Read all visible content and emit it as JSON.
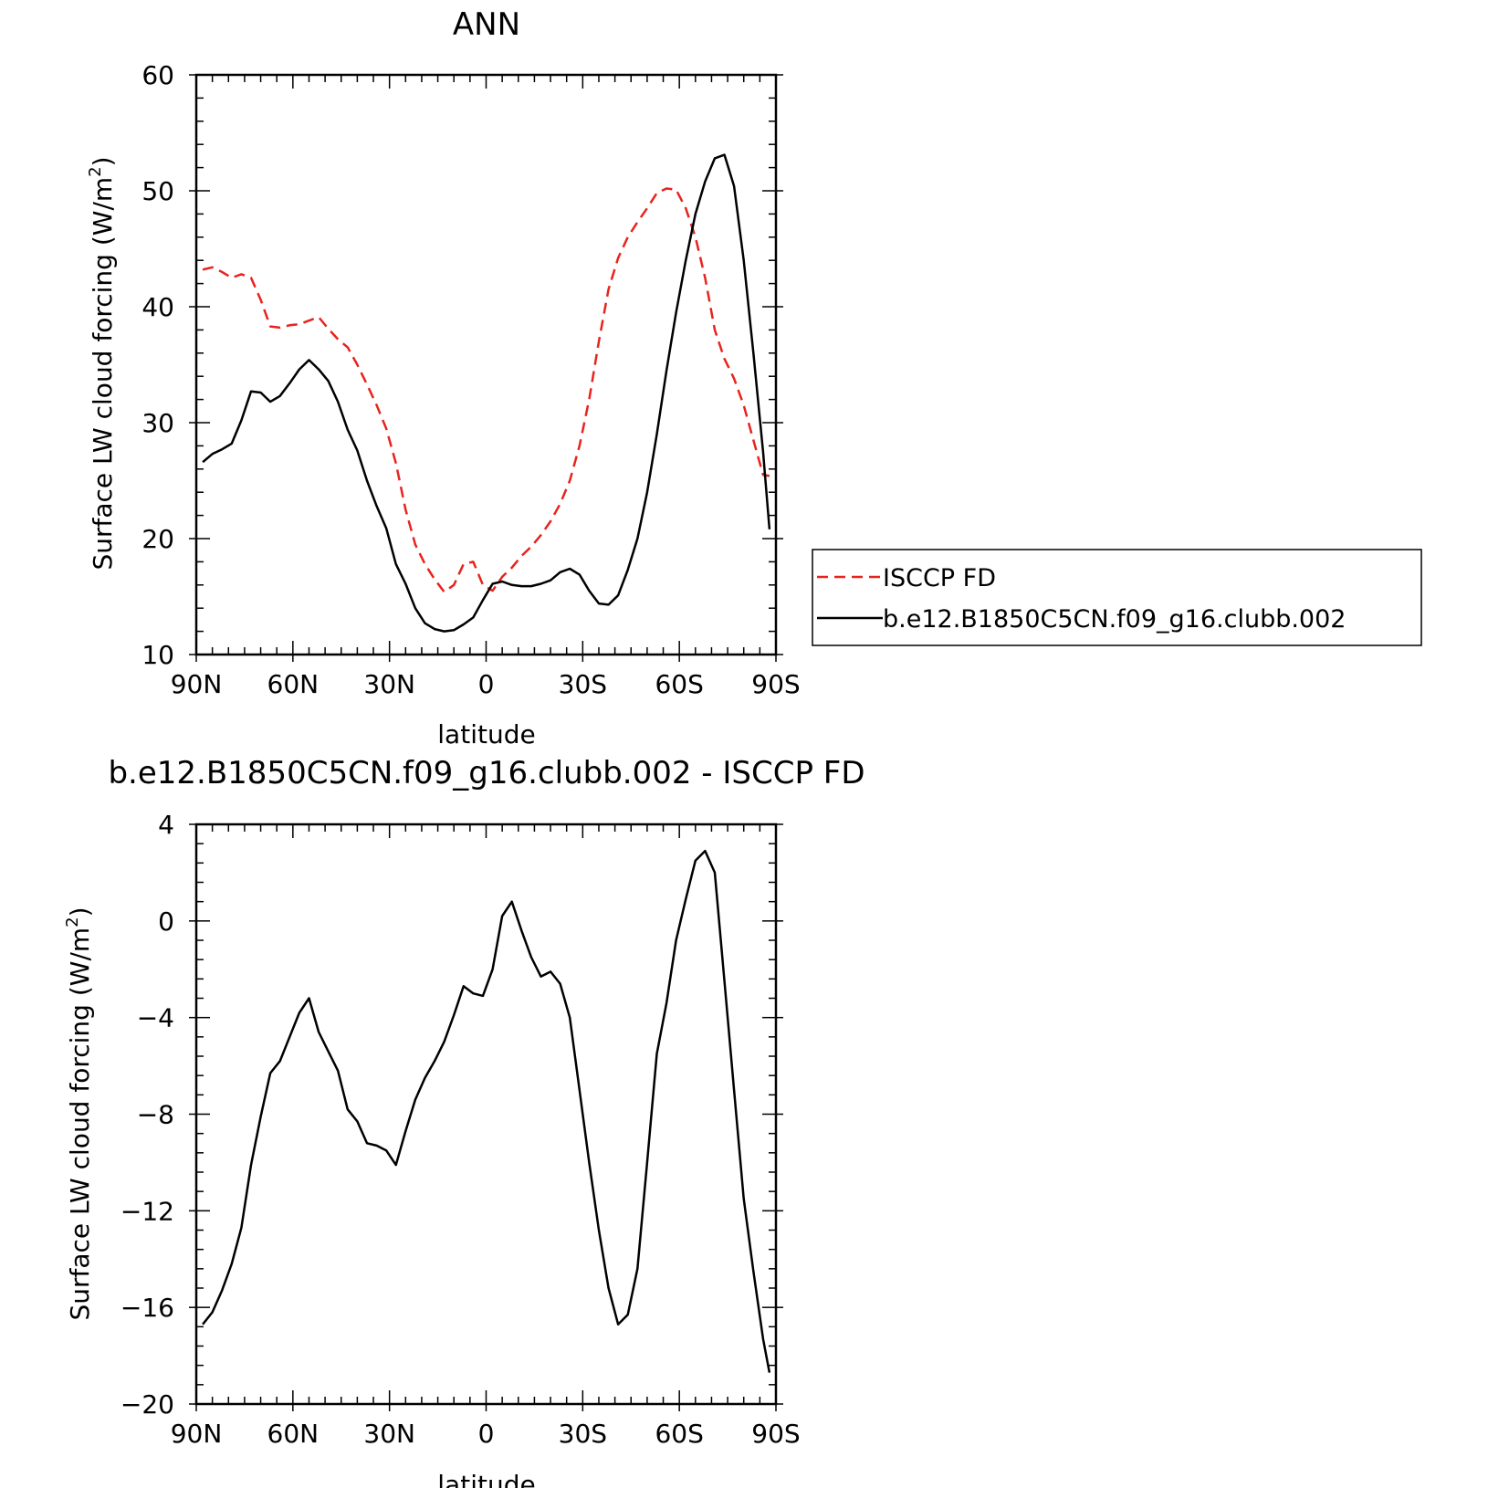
{
  "chart_data": [
    {
      "type": "line",
      "title": "ANN",
      "xlabel": "latitude",
      "ylabel": "Surface LW cloud forcing (W/m",
      "ylabel_superscript": "2",
      "ylabel_suffix": ")",
      "ylim": [
        10,
        60
      ],
      "xlim": [
        90,
        -90
      ],
      "x_ticks": [
        90,
        60,
        30,
        0,
        -30,
        -60,
        -90
      ],
      "x_tick_labels": [
        "90N",
        "60N",
        "30N",
        "0",
        "30S",
        "60S",
        "90S"
      ],
      "y_ticks": [
        10,
        20,
        30,
        40,
        50,
        60
      ],
      "y_tick_labels": [
        "10",
        "20",
        "30",
        "40",
        "50",
        "60"
      ],
      "legend_position": "right",
      "series": [
        {
          "name": "ISCCP FD",
          "color": "#e8231e",
          "dash": "dashed",
          "x": [
            88,
            85,
            82,
            79,
            76,
            73,
            70,
            67,
            64,
            61,
            58,
            55,
            52,
            49,
            46,
            43,
            40,
            37,
            34,
            31,
            28,
            25,
            22,
            19,
            16,
            13,
            10,
            7,
            4,
            1,
            -2,
            -5,
            -8,
            -11,
            -14,
            -17,
            -20,
            -23,
            -26,
            -29,
            -32,
            -35,
            -38,
            -41,
            -44,
            -47,
            -50,
            -53,
            -56,
            -59,
            -62,
            -65,
            -68,
            -71,
            -74,
            -77,
            -80,
            -83,
            -86,
            -88
          ],
          "y": [
            43.2,
            43.4,
            43.0,
            42.5,
            42.8,
            42.5,
            40.6,
            38.3,
            38.2,
            38.4,
            38.5,
            38.8,
            39.1,
            38.1,
            37.2,
            36.5,
            35.0,
            33.3,
            31.5,
            29.5,
            26.5,
            22.5,
            19.5,
            17.8,
            16.5,
            15.4,
            16.0,
            17.8,
            18.0,
            16.0,
            15.5,
            16.7,
            17.5,
            18.5,
            19.3,
            20.3,
            21.5,
            23.0,
            25.0,
            28.0,
            32.0,
            37.0,
            41.5,
            44.2,
            46.0,
            47.3,
            48.5,
            49.8,
            50.2,
            50.1,
            48.5,
            46.0,
            42.5,
            38.0,
            35.5,
            33.8,
            31.5,
            28.5,
            25.5,
            25.4
          ]
        },
        {
          "name": "b.e12.B1850C5CN.f09_g16.clubb.002",
          "color": "#000000",
          "dash": "solid",
          "x": [
            88,
            85,
            82,
            79,
            76,
            73,
            70,
            67,
            64,
            61,
            58,
            55,
            52,
            49,
            46,
            43,
            40,
            37,
            34,
            31,
            28,
            25,
            22,
            19,
            16,
            13,
            10,
            7,
            4,
            1,
            -2,
            -5,
            -8,
            -11,
            -14,
            -17,
            -20,
            -23,
            -26,
            -29,
            -32,
            -35,
            -38,
            -41,
            -44,
            -47,
            -50,
            -53,
            -56,
            -59,
            -62,
            -65,
            -68,
            -71,
            -74,
            -77,
            -80,
            -83,
            -86,
            -88
          ],
          "y": [
            26.6,
            27.3,
            27.7,
            28.2,
            30.2,
            32.7,
            32.6,
            31.8,
            32.3,
            33.4,
            34.6,
            35.4,
            34.6,
            33.6,
            31.8,
            29.4,
            27.6,
            25.0,
            22.8,
            20.9,
            17.8,
            16.1,
            14.0,
            12.7,
            12.2,
            12.0,
            12.1,
            12.6,
            13.2,
            14.7,
            16.1,
            16.3,
            16.0,
            15.9,
            15.9,
            16.1,
            16.4,
            17.1,
            17.4,
            16.9,
            15.5,
            14.4,
            14.3,
            15.1,
            17.3,
            20.0,
            24.0,
            29.0,
            34.5,
            39.5,
            44.0,
            48.0,
            50.8,
            52.8,
            53.1,
            50.4,
            44.0,
            36.0,
            27.5,
            20.8
          ]
        }
      ]
    },
    {
      "type": "line",
      "title": "b.e12.B1850C5CN.f09_g16.clubb.002 - ISCCP FD",
      "xlabel": "latitude",
      "ylabel": "Surface LW cloud forcing (W/m",
      "ylabel_superscript": "2",
      "ylabel_suffix": ")",
      "ylim": [
        -20,
        4
      ],
      "xlim": [
        90,
        -90
      ],
      "x_ticks": [
        90,
        60,
        30,
        0,
        -30,
        -60,
        -90
      ],
      "x_tick_labels": [
        "90N",
        "60N",
        "30N",
        "0",
        "30S",
        "60S",
        "90S"
      ],
      "y_ticks": [
        4,
        0,
        -4,
        -8,
        -12,
        -16,
        -20
      ],
      "y_tick_labels": [
        "4",
        "0",
        "−4",
        "−8",
        "−12",
        "−16",
        "−20"
      ],
      "series": [
        {
          "color": "#000000",
          "dash": "solid",
          "x": [
            88,
            85,
            82,
            79,
            76,
            73,
            70,
            67,
            64,
            61,
            58,
            55,
            52,
            49,
            46,
            43,
            40,
            37,
            34,
            31,
            28,
            25,
            22,
            19,
            16,
            13,
            10,
            7,
            4,
            1,
            -2,
            -5,
            -8,
            -11,
            -14,
            -17,
            -20,
            -23,
            -26,
            -29,
            -32,
            -35,
            -38,
            -41,
            -44,
            -47,
            -50,
            -53,
            -56,
            -59,
            -62,
            -65,
            -68,
            -71,
            -74,
            -77,
            -80,
            -83,
            -86,
            -88
          ],
          "y": [
            -16.7,
            -16.2,
            -15.3,
            -14.2,
            -12.7,
            -10.1,
            -8.1,
            -6.3,
            -5.8,
            -4.8,
            -3.8,
            -3.2,
            -4.6,
            -5.4,
            -6.2,
            -7.8,
            -8.3,
            -9.2,
            -9.3,
            -9.5,
            -10.1,
            -8.7,
            -7.4,
            -6.5,
            -5.8,
            -5.0,
            -3.9,
            -2.7,
            -3.0,
            -3.1,
            -2.0,
            0.2,
            0.8,
            -0.4,
            -1.5,
            -2.3,
            -2.1,
            -2.6,
            -4.0,
            -7.0,
            -10.0,
            -12.8,
            -15.2,
            -16.7,
            -16.3,
            -14.4,
            -10.0,
            -5.5,
            -3.4,
            -0.8,
            0.9,
            2.5,
            2.9,
            2.0,
            -2.5,
            -7.0,
            -11.5,
            -14.5,
            -17.3,
            -18.7
          ]
        }
      ]
    }
  ]
}
